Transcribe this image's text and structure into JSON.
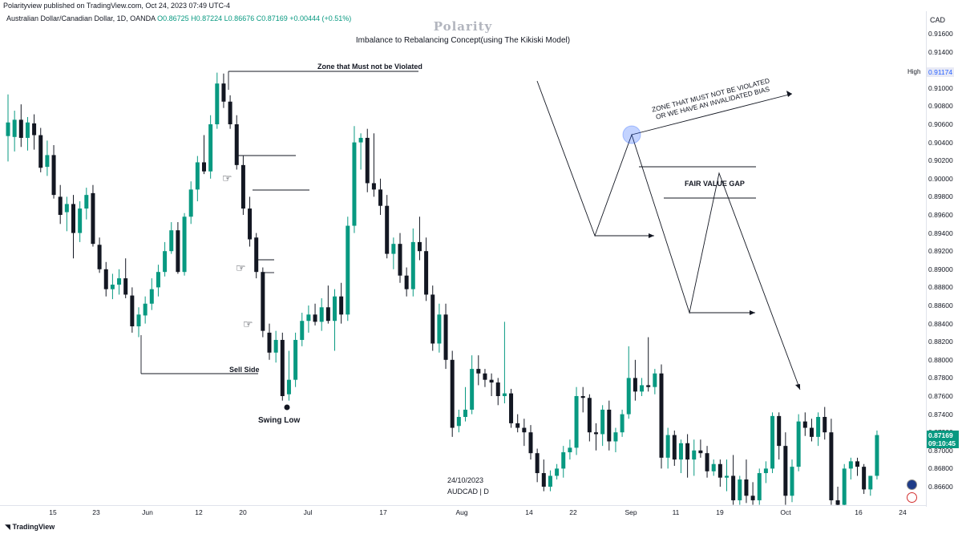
{
  "header": {
    "published": "Polarityview published on TradingView.com, Oct 24, 2023 07:49 UTC-4",
    "symbol_line": "Australian Dollar/Canadian Dollar, 1D, OANDA",
    "ohlc": "O0.86725  H0.87224  L0.86676  C0.87169  +0.00444 (+0.51%)",
    "watermark": "Polarity",
    "subtitle": "Imbalance to Rebalancing Concept(using The Kikiski Model)"
  },
  "price_axis": {
    "currency": "CAD",
    "labels": [
      "0.91600",
      "0.91400",
      "0.91200",
      "0.91000",
      "0.90800",
      "0.90600",
      "0.90400",
      "0.90200",
      "0.90000",
      "0.89800",
      "0.89600",
      "0.89400",
      "0.89200",
      "0.89000",
      "0.88800",
      "0.88600",
      "0.88400",
      "0.88200",
      "0.88000",
      "0.87800",
      "0.87600",
      "0.87400",
      "0.87200",
      "0.87000",
      "0.86800",
      "0.86600"
    ],
    "high_label": "High",
    "high_value": "0.91174",
    "last_price": "0.87169",
    "countdown": "09:10:45"
  },
  "time_axis": {
    "labels": [
      "15",
      "23",
      "Jun",
      "12",
      "20",
      "Jul",
      "17",
      "Aug",
      "14",
      "22",
      "Sep",
      "11",
      "19",
      "Oct",
      "16",
      "24"
    ]
  },
  "annotations": {
    "zone": "Zone that Must not be Violated",
    "sell_side": "Sell Side",
    "swing_low": "Swing Low",
    "fvg": "FAIR VALUE GAP",
    "zone_caps_1": "ZONE THAT MUST NOT BE VIOLATED",
    "zone_caps_2": "OR WE HAVE AN INVALIDATED BIAS"
  },
  "stamp": {
    "date": "24/10/2023",
    "symbol": "AUDCAD | D"
  },
  "footer": {
    "brand": "TradingView"
  },
  "colors": {
    "up": "#089981",
    "down": "#131722",
    "accent": "#2962ff"
  },
  "chart_data": {
    "type": "candlestick",
    "title": "Imbalance to Rebalancing Concept(using The Kikiski Model)",
    "symbol": "AUDCAD",
    "timeframe": "1D",
    "ylim": [
      0.8645,
      0.9175
    ],
    "candles": [
      {
        "o": 0.9047,
        "h": 0.9093,
        "l": 0.9019,
        "c": 0.9062
      },
      {
        "o": 0.9046,
        "h": 0.9075,
        "l": 0.903,
        "c": 0.9065
      },
      {
        "o": 0.9065,
        "h": 0.9082,
        "l": 0.9035,
        "c": 0.9045
      },
      {
        "o": 0.9045,
        "h": 0.9068,
        "l": 0.9031,
        "c": 0.9062
      },
      {
        "o": 0.9061,
        "h": 0.9071,
        "l": 0.9032,
        "c": 0.9048
      },
      {
        "o": 0.9048,
        "h": 0.9056,
        "l": 0.9007,
        "c": 0.9012
      },
      {
        "o": 0.9013,
        "h": 0.9042,
        "l": 0.9003,
        "c": 0.9026
      },
      {
        "o": 0.9026,
        "h": 0.9037,
        "l": 0.8978,
        "c": 0.8982
      },
      {
        "o": 0.898,
        "h": 0.8993,
        "l": 0.895,
        "c": 0.896
      },
      {
        "o": 0.8963,
        "h": 0.898,
        "l": 0.8942,
        "c": 0.8972
      },
      {
        "o": 0.8972,
        "h": 0.8982,
        "l": 0.8912,
        "c": 0.894
      },
      {
        "o": 0.894,
        "h": 0.8975,
        "l": 0.893,
        "c": 0.8967
      },
      {
        "o": 0.8967,
        "h": 0.899,
        "l": 0.8955,
        "c": 0.8982
      },
      {
        "o": 0.8984,
        "h": 0.8993,
        "l": 0.8925,
        "c": 0.8928
      },
      {
        "o": 0.8927,
        "h": 0.8935,
        "l": 0.8896,
        "c": 0.89
      },
      {
        "o": 0.89,
        "h": 0.8908,
        "l": 0.887,
        "c": 0.8878
      },
      {
        "o": 0.8878,
        "h": 0.8895,
        "l": 0.8867,
        "c": 0.8883
      },
      {
        "o": 0.8883,
        "h": 0.89,
        "l": 0.8872,
        "c": 0.889
      },
      {
        "o": 0.889,
        "h": 0.8912,
        "l": 0.8868,
        "c": 0.8872
      },
      {
        "o": 0.8871,
        "h": 0.888,
        "l": 0.883,
        "c": 0.8837
      },
      {
        "o": 0.8837,
        "h": 0.8858,
        "l": 0.8825,
        "c": 0.885
      },
      {
        "o": 0.8849,
        "h": 0.887,
        "l": 0.884,
        "c": 0.8862
      },
      {
        "o": 0.8862,
        "h": 0.889,
        "l": 0.8855,
        "c": 0.8878
      },
      {
        "o": 0.888,
        "h": 0.8905,
        "l": 0.887,
        "c": 0.8897
      },
      {
        "o": 0.8897,
        "h": 0.893,
        "l": 0.8892,
        "c": 0.892
      },
      {
        "o": 0.892,
        "h": 0.8952,
        "l": 0.8917,
        "c": 0.8943
      },
      {
        "o": 0.8943,
        "h": 0.8952,
        "l": 0.8895,
        "c": 0.8897
      },
      {
        "o": 0.8897,
        "h": 0.8962,
        "l": 0.8893,
        "c": 0.8958
      },
      {
        "o": 0.8958,
        "h": 0.8997,
        "l": 0.895,
        "c": 0.8988
      },
      {
        "o": 0.8988,
        "h": 0.9025,
        "l": 0.8975,
        "c": 0.9018
      },
      {
        "o": 0.9018,
        "h": 0.9048,
        "l": 0.9005,
        "c": 0.9008
      },
      {
        "o": 0.9008,
        "h": 0.907,
        "l": 0.9,
        "c": 0.906
      },
      {
        "o": 0.906,
        "h": 0.9117,
        "l": 0.9055,
        "c": 0.9105
      },
      {
        "o": 0.9105,
        "h": 0.9116,
        "l": 0.9078,
        "c": 0.9085
      },
      {
        "o": 0.9085,
        "h": 0.9092,
        "l": 0.9055,
        "c": 0.906
      },
      {
        "o": 0.906,
        "h": 0.907,
        "l": 0.901,
        "c": 0.9015
      },
      {
        "o": 0.9015,
        "h": 0.9025,
        "l": 0.896,
        "c": 0.8967
      },
      {
        "o": 0.8967,
        "h": 0.898,
        "l": 0.8925,
        "c": 0.8933
      },
      {
        "o": 0.8935,
        "h": 0.894,
        "l": 0.889,
        "c": 0.8897
      },
      {
        "o": 0.8897,
        "h": 0.8902,
        "l": 0.8825,
        "c": 0.8832
      },
      {
        "o": 0.883,
        "h": 0.884,
        "l": 0.88,
        "c": 0.8808
      },
      {
        "o": 0.8808,
        "h": 0.8832,
        "l": 0.8797,
        "c": 0.8822
      },
      {
        "o": 0.8822,
        "h": 0.883,
        "l": 0.8755,
        "c": 0.876
      },
      {
        "o": 0.8762,
        "h": 0.881,
        "l": 0.8755,
        "c": 0.8778
      },
      {
        "o": 0.8778,
        "h": 0.883,
        "l": 0.877,
        "c": 0.8822
      },
      {
        "o": 0.8822,
        "h": 0.8852,
        "l": 0.8815,
        "c": 0.8843
      },
      {
        "o": 0.8843,
        "h": 0.886,
        "l": 0.883,
        "c": 0.885
      },
      {
        "o": 0.885,
        "h": 0.8862,
        "l": 0.8838,
        "c": 0.8842
      },
      {
        "o": 0.8842,
        "h": 0.8868,
        "l": 0.8832,
        "c": 0.8858
      },
      {
        "o": 0.8858,
        "h": 0.8882,
        "l": 0.884,
        "c": 0.8843
      },
      {
        "o": 0.8843,
        "h": 0.8878,
        "l": 0.881,
        "c": 0.887
      },
      {
        "o": 0.887,
        "h": 0.8885,
        "l": 0.884,
        "c": 0.885
      },
      {
        "o": 0.885,
        "h": 0.8958,
        "l": 0.8843,
        "c": 0.8948
      },
      {
        "o": 0.8948,
        "h": 0.9058,
        "l": 0.894,
        "c": 0.904
      },
      {
        "o": 0.904,
        "h": 0.905,
        "l": 0.901,
        "c": 0.9045
      },
      {
        "o": 0.9045,
        "h": 0.9055,
        "l": 0.8985,
        "c": 0.8995
      },
      {
        "o": 0.8995,
        "h": 0.905,
        "l": 0.898,
        "c": 0.8988
      },
      {
        "o": 0.8988,
        "h": 0.9,
        "l": 0.896,
        "c": 0.897
      },
      {
        "o": 0.897,
        "h": 0.8982,
        "l": 0.8912,
        "c": 0.8917
      },
      {
        "o": 0.8917,
        "h": 0.8935,
        "l": 0.89,
        "c": 0.8928
      },
      {
        "o": 0.8928,
        "h": 0.894,
        "l": 0.8885,
        "c": 0.8893
      },
      {
        "o": 0.8893,
        "h": 0.8902,
        "l": 0.887,
        "c": 0.8878
      },
      {
        "o": 0.8878,
        "h": 0.8945,
        "l": 0.887,
        "c": 0.893
      },
      {
        "o": 0.893,
        "h": 0.8958,
        "l": 0.891,
        "c": 0.892
      },
      {
        "o": 0.892,
        "h": 0.8935,
        "l": 0.8865,
        "c": 0.8872
      },
      {
        "o": 0.8872,
        "h": 0.8882,
        "l": 0.881,
        "c": 0.8818
      },
      {
        "o": 0.8818,
        "h": 0.8862,
        "l": 0.8808,
        "c": 0.885
      },
      {
        "o": 0.885,
        "h": 0.8862,
        "l": 0.879,
        "c": 0.88
      },
      {
        "o": 0.88,
        "h": 0.881,
        "l": 0.8715,
        "c": 0.8725
      },
      {
        "o": 0.8727,
        "h": 0.8745,
        "l": 0.872,
        "c": 0.8737
      },
      {
        "o": 0.8737,
        "h": 0.877,
        "l": 0.8732,
        "c": 0.8745
      },
      {
        "o": 0.8745,
        "h": 0.8805,
        "l": 0.874,
        "c": 0.879
      },
      {
        "o": 0.879,
        "h": 0.8805,
        "l": 0.8772,
        "c": 0.8785
      },
      {
        "o": 0.8785,
        "h": 0.879,
        "l": 0.877,
        "c": 0.8778
      },
      {
        "o": 0.8778,
        "h": 0.8785,
        "l": 0.876,
        "c": 0.8775
      },
      {
        "o": 0.8775,
        "h": 0.878,
        "l": 0.875,
        "c": 0.876
      },
      {
        "o": 0.876,
        "h": 0.8842,
        "l": 0.8752,
        "c": 0.8763
      },
      {
        "o": 0.8763,
        "h": 0.8768,
        "l": 0.8725,
        "c": 0.873
      },
      {
        "o": 0.873,
        "h": 0.874,
        "l": 0.872,
        "c": 0.8725
      },
      {
        "o": 0.8725,
        "h": 0.8735,
        "l": 0.8705,
        "c": 0.872
      },
      {
        "o": 0.872,
        "h": 0.8728,
        "l": 0.869,
        "c": 0.8697
      },
      {
        "o": 0.8697,
        "h": 0.8702,
        "l": 0.8665,
        "c": 0.8675
      },
      {
        "o": 0.8675,
        "h": 0.869,
        "l": 0.8655,
        "c": 0.866
      },
      {
        "o": 0.866,
        "h": 0.8678,
        "l": 0.8655,
        "c": 0.8672
      },
      {
        "o": 0.8672,
        "h": 0.8685,
        "l": 0.8668,
        "c": 0.868
      },
      {
        "o": 0.868,
        "h": 0.8705,
        "l": 0.867,
        "c": 0.8698
      },
      {
        "o": 0.8698,
        "h": 0.8712,
        "l": 0.869,
        "c": 0.8703
      },
      {
        "o": 0.8703,
        "h": 0.877,
        "l": 0.8695,
        "c": 0.876
      },
      {
        "o": 0.876,
        "h": 0.877,
        "l": 0.8742,
        "c": 0.8758
      },
      {
        "o": 0.8758,
        "h": 0.8762,
        "l": 0.871,
        "c": 0.872
      },
      {
        "o": 0.872,
        "h": 0.873,
        "l": 0.87,
        "c": 0.8718
      },
      {
        "o": 0.8718,
        "h": 0.875,
        "l": 0.8705,
        "c": 0.8745
      },
      {
        "o": 0.8745,
        "h": 0.8755,
        "l": 0.87,
        "c": 0.871
      },
      {
        "o": 0.871,
        "h": 0.8725,
        "l": 0.8698,
        "c": 0.872
      },
      {
        "o": 0.872,
        "h": 0.8745,
        "l": 0.8715,
        "c": 0.874
      },
      {
        "o": 0.874,
        "h": 0.8815,
        "l": 0.8735,
        "c": 0.878
      },
      {
        "o": 0.878,
        "h": 0.88,
        "l": 0.8755,
        "c": 0.8765
      },
      {
        "o": 0.8765,
        "h": 0.878,
        "l": 0.876,
        "c": 0.8772
      },
      {
        "o": 0.8772,
        "h": 0.8825,
        "l": 0.8765,
        "c": 0.877
      },
      {
        "o": 0.877,
        "h": 0.879,
        "l": 0.8762,
        "c": 0.8785
      },
      {
        "o": 0.8785,
        "h": 0.8795,
        "l": 0.868,
        "c": 0.8692
      },
      {
        "o": 0.8692,
        "h": 0.8725,
        "l": 0.868,
        "c": 0.8717
      },
      {
        "o": 0.8717,
        "h": 0.8722,
        "l": 0.8683,
        "c": 0.869
      },
      {
        "o": 0.869,
        "h": 0.8712,
        "l": 0.8675,
        "c": 0.8708
      },
      {
        "o": 0.8708,
        "h": 0.8718,
        "l": 0.867,
        "c": 0.869
      },
      {
        "o": 0.869,
        "h": 0.8712,
        "l": 0.8672,
        "c": 0.87
      },
      {
        "o": 0.87,
        "h": 0.8712,
        "l": 0.8692,
        "c": 0.8697
      },
      {
        "o": 0.8697,
        "h": 0.8705,
        "l": 0.867,
        "c": 0.8677
      },
      {
        "o": 0.8677,
        "h": 0.869,
        "l": 0.8672,
        "c": 0.8685
      },
      {
        "o": 0.8685,
        "h": 0.869,
        "l": 0.866,
        "c": 0.867
      },
      {
        "o": 0.867,
        "h": 0.869,
        "l": 0.8655,
        "c": 0.8672
      },
      {
        "o": 0.8672,
        "h": 0.8695,
        "l": 0.864,
        "c": 0.8645
      },
      {
        "o": 0.8645,
        "h": 0.8672,
        "l": 0.864,
        "c": 0.8668
      },
      {
        "o": 0.8668,
        "h": 0.869,
        "l": 0.8642,
        "c": 0.865
      },
      {
        "o": 0.865,
        "h": 0.8665,
        "l": 0.864,
        "c": 0.8645
      },
      {
        "o": 0.8645,
        "h": 0.868,
        "l": 0.864,
        "c": 0.8675
      },
      {
        "o": 0.8675,
        "h": 0.8688,
        "l": 0.8664,
        "c": 0.868
      },
      {
        "o": 0.868,
        "h": 0.8742,
        "l": 0.8675,
        "c": 0.8738
      },
      {
        "o": 0.8738,
        "h": 0.8742,
        "l": 0.869,
        "c": 0.8705
      },
      {
        "o": 0.8705,
        "h": 0.872,
        "l": 0.864,
        "c": 0.865
      },
      {
        "o": 0.865,
        "h": 0.869,
        "l": 0.8643,
        "c": 0.8682
      },
      {
        "o": 0.8682,
        "h": 0.874,
        "l": 0.8677,
        "c": 0.8732
      },
      {
        "o": 0.8732,
        "h": 0.8742,
        "l": 0.8716,
        "c": 0.8725
      },
      {
        "o": 0.8725,
        "h": 0.8735,
        "l": 0.871,
        "c": 0.8715
      },
      {
        "o": 0.8715,
        "h": 0.8742,
        "l": 0.8705,
        "c": 0.8737
      },
      {
        "o": 0.8737,
        "h": 0.8748,
        "l": 0.8712,
        "c": 0.872
      },
      {
        "o": 0.872,
        "h": 0.8735,
        "l": 0.864,
        "c": 0.8645
      },
      {
        "o": 0.8645,
        "h": 0.866,
        "l": 0.862,
        "c": 0.864
      },
      {
        "o": 0.864,
        "h": 0.8685,
        "l": 0.863,
        "c": 0.868
      },
      {
        "o": 0.868,
        "h": 0.8692,
        "l": 0.8668,
        "c": 0.8688
      },
      {
        "o": 0.8688,
        "h": 0.8692,
        "l": 0.8672,
        "c": 0.8682
      },
      {
        "o": 0.8682,
        "h": 0.8685,
        "l": 0.8652,
        "c": 0.8657
      },
      {
        "o": 0.8657,
        "h": 0.8672,
        "l": 0.865,
        "c": 0.8672
      },
      {
        "o": 0.8672,
        "h": 0.8722,
        "l": 0.8668,
        "c": 0.8717
      }
    ]
  }
}
